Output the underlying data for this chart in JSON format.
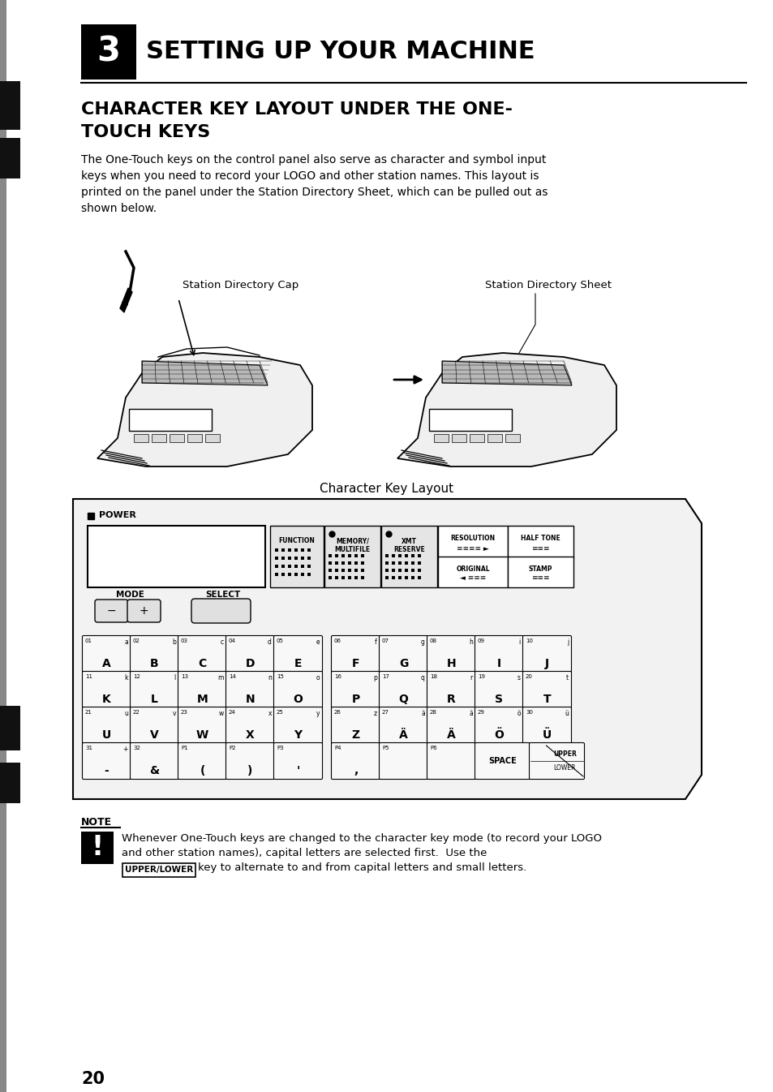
{
  "page_bg": "#ffffff",
  "title_text": "SETTING UP YOUR MACHINE",
  "chapter_num": "3",
  "subtitle_line1": "CHARACTER KEY LAYOUT UNDER THE ONE-",
  "subtitle_line2": "TOUCH KEYS",
  "body_lines": [
    "The One-Touch keys on the control panel also serve as character and symbol input",
    "keys when you need to record your LOGO and other station names. This layout is",
    "printed on the panel under the Station Directory Sheet, which can be pulled out as",
    "shown below."
  ],
  "caption_left": "Station Directory Cap",
  "caption_right": "Station Directory Sheet",
  "keyboard_caption": "Character Key Layout",
  "power_label": "POWER",
  "function_label": "FUNCTION",
  "memory_label": "MEMORY/\nMULTIFILE",
  "xmt_label": "XMT\nRESERVE",
  "resolution_label": "RESOLUTION",
  "halftone_label": "HALF TONE",
  "original_label": "ORIGINAL",
  "stamp_label": "STAMP",
  "mode_label": "MODE",
  "select_label": "SELECT",
  "note_title": "NOTE",
  "note_text1": "Whenever One-Touch keys are changed to the character key mode (to record your LOGO",
  "note_text2": "and other station names), capital letters are selected first.  Use the",
  "note_text3": "key to alternate to and from capital letters and small letters.",
  "upper_lower_key": "UPPER/LOWER",
  "page_num": "20",
  "row1": [
    [
      "01",
      "a",
      "A"
    ],
    [
      "02",
      "b",
      "B"
    ],
    [
      "03",
      "c",
      "C"
    ],
    [
      "04",
      "d",
      "D"
    ],
    [
      "05",
      "e",
      "E"
    ],
    [
      "06",
      "f",
      "F"
    ],
    [
      "07",
      "g",
      "G"
    ],
    [
      "08",
      "h",
      "H"
    ],
    [
      "09",
      "i",
      "I"
    ],
    [
      "10",
      "j",
      "J"
    ]
  ],
  "row2": [
    [
      "11",
      "k",
      "K"
    ],
    [
      "12",
      "l",
      "L"
    ],
    [
      "13",
      "m",
      "M"
    ],
    [
      "14",
      "n",
      "N"
    ],
    [
      "15",
      "o",
      "O"
    ],
    [
      "16",
      "p",
      "P"
    ],
    [
      "17",
      "q",
      "Q"
    ],
    [
      "18",
      "r",
      "R"
    ],
    [
      "19",
      "s",
      "S"
    ],
    [
      "20",
      "t",
      "T"
    ]
  ],
  "row3": [
    [
      "21",
      "u",
      "U"
    ],
    [
      "22",
      "v",
      "V"
    ],
    [
      "23",
      "w",
      "W"
    ],
    [
      "24",
      "x",
      "X"
    ],
    [
      "25",
      "y",
      "Y"
    ],
    [
      "26",
      "z",
      "Z"
    ],
    [
      "27",
      "ä",
      "Ä"
    ],
    [
      "28",
      "ä",
      "Ä"
    ],
    [
      "29",
      "ö",
      "Ö"
    ],
    [
      "30",
      "ü",
      "Ü"
    ]
  ],
  "row4_left": [
    [
      "31",
      "+",
      "-"
    ],
    [
      "32",
      "",
      "&"
    ],
    [
      "P1",
      "",
      "("
    ],
    [
      "P2",
      "",
      ")"
    ],
    [
      "P3",
      "",
      "'"
    ]
  ],
  "row4_right": [
    [
      "P4",
      "",
      ","
    ],
    [
      "P5",
      "",
      ""
    ],
    [
      "P6",
      "",
      ""
    ]
  ]
}
